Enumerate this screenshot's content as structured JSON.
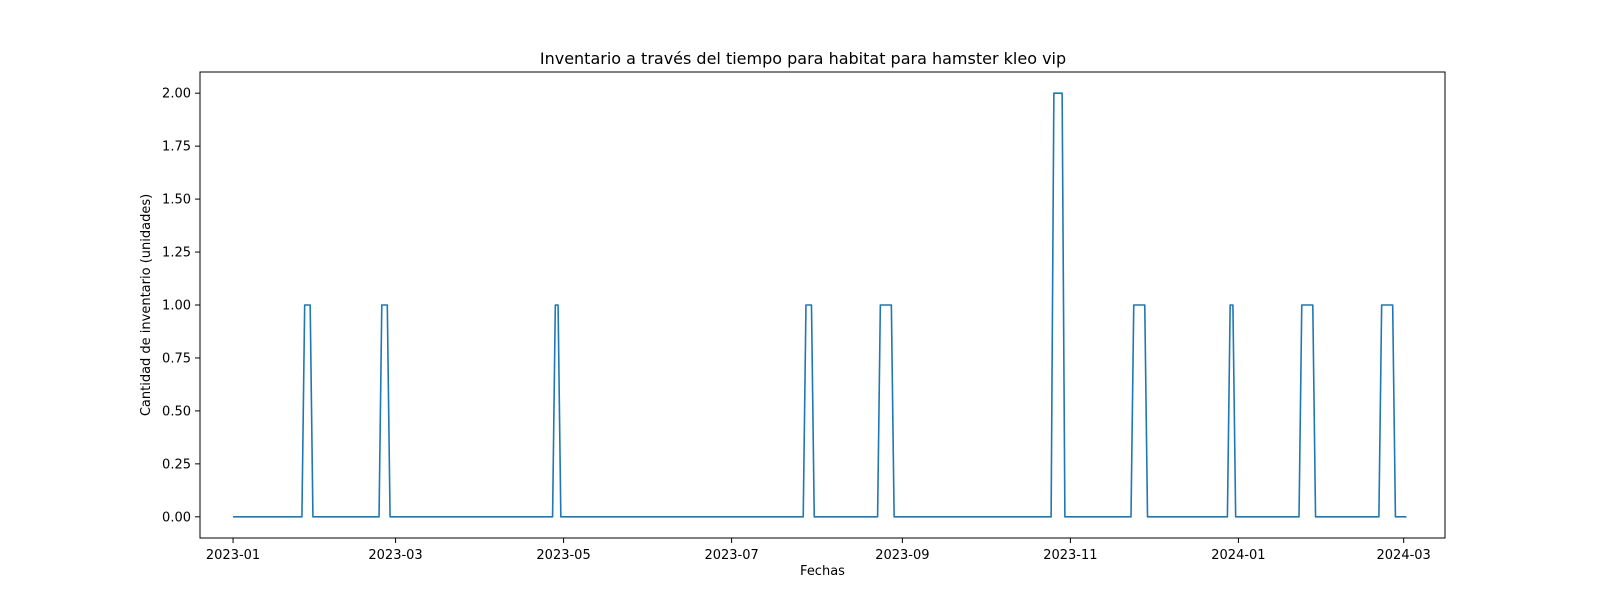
{
  "chart_data": {
    "type": "line",
    "title": "Inventario a través del tiempo para habitat para hamster kleo vip",
    "xlabel": "Fechas",
    "ylabel": "Cantidad de inventario (unidades)",
    "x_ticks": [
      "2023-01",
      "2023-03",
      "2023-05",
      "2023-07",
      "2023-09",
      "2023-11",
      "2024-01",
      "2024-03"
    ],
    "y_ticks": [
      "0.00",
      "0.25",
      "0.50",
      "0.75",
      "1.00",
      "1.25",
      "1.50",
      "1.75",
      "2.00"
    ],
    "xlim": [
      "2022-12-20",
      "2024-03-16"
    ],
    "ylim": [
      -0.1,
      2.1
    ],
    "grid": false,
    "line_color": "#1f77b4",
    "series": [
      {
        "x": [
          "2023-01-01",
          "2023-01-26",
          "2023-01-27",
          "2023-01-29",
          "2023-01-30",
          "2023-02-23",
          "2023-02-24",
          "2023-02-26",
          "2023-02-27",
          "2023-04-27",
          "2023-04-28",
          "2023-04-29",
          "2023-04-30",
          "2023-07-27",
          "2023-07-28",
          "2023-07-30",
          "2023-07-31",
          "2023-08-23",
          "2023-08-24",
          "2023-08-28",
          "2023-08-29",
          "2023-10-25",
          "2023-10-26",
          "2023-10-29",
          "2023-10-30",
          "2023-11-23",
          "2023-11-24",
          "2023-11-28",
          "2023-11-29",
          "2023-12-28",
          "2023-12-29",
          "2023-12-30",
          "2023-12-31",
          "2024-01-23",
          "2024-01-24",
          "2024-01-28",
          "2024-01-29",
          "2024-02-21",
          "2024-02-22",
          "2024-02-26",
          "2024-02-27",
          "2024-03-02"
        ],
        "values": [
          0,
          0,
          1,
          1,
          0,
          0,
          1,
          1,
          0,
          0,
          1,
          1,
          0,
          0,
          1,
          1,
          0,
          0,
          1,
          1,
          0,
          0,
          2,
          2,
          0,
          0,
          1,
          1,
          0,
          0,
          1,
          1,
          0,
          0,
          1,
          1,
          0,
          0,
          1,
          1,
          0,
          0
        ]
      }
    ]
  }
}
